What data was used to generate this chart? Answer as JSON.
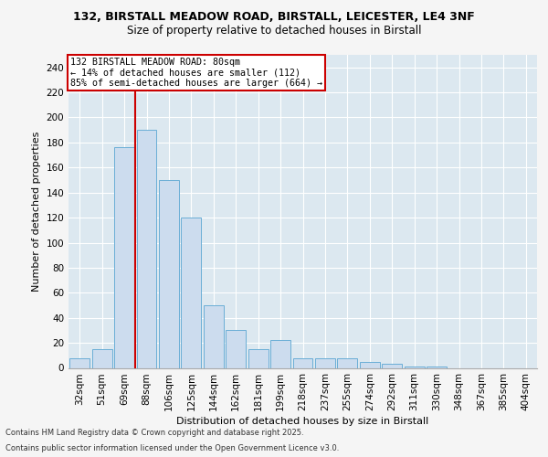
{
  "title_line1": "132, BIRSTALL MEADOW ROAD, BIRSTALL, LEICESTER, LE4 3NF",
  "title_line2": "Size of property relative to detached houses in Birstall",
  "xlabel": "Distribution of detached houses by size in Birstall",
  "ylabel": "Number of detached properties",
  "categories": [
    "32sqm",
    "51sqm",
    "69sqm",
    "88sqm",
    "106sqm",
    "125sqm",
    "144sqm",
    "162sqm",
    "181sqm",
    "199sqm",
    "218sqm",
    "237sqm",
    "255sqm",
    "274sqm",
    "292sqm",
    "311sqm",
    "330sqm",
    "348sqm",
    "367sqm",
    "385sqm",
    "404sqm"
  ],
  "values": [
    8,
    15,
    176,
    190,
    150,
    120,
    50,
    30,
    15,
    22,
    8,
    8,
    8,
    5,
    3,
    1,
    1,
    0,
    0,
    0,
    0
  ],
  "bar_color": "#ccdcee",
  "bar_edge_color": "#6aaed6",
  "vline_color": "#cc0000",
  "vline_pos": 2.5,
  "annotation_text": "132 BIRSTALL MEADOW ROAD: 80sqm\n← 14% of detached houses are smaller (112)\n85% of semi-detached houses are larger (664) →",
  "annotation_box_color": "#ffffff",
  "annotation_box_edge": "#cc0000",
  "footnote1": "Contains HM Land Registry data © Crown copyright and database right 2025.",
  "footnote2": "Contains public sector information licensed under the Open Government Licence v3.0.",
  "ylim_max": 250,
  "yticks": [
    0,
    20,
    40,
    60,
    80,
    100,
    120,
    140,
    160,
    180,
    200,
    220,
    240
  ],
  "background_color": "#dce8f0",
  "fig_background": "#f5f5f5",
  "grid_color": "#ffffff"
}
